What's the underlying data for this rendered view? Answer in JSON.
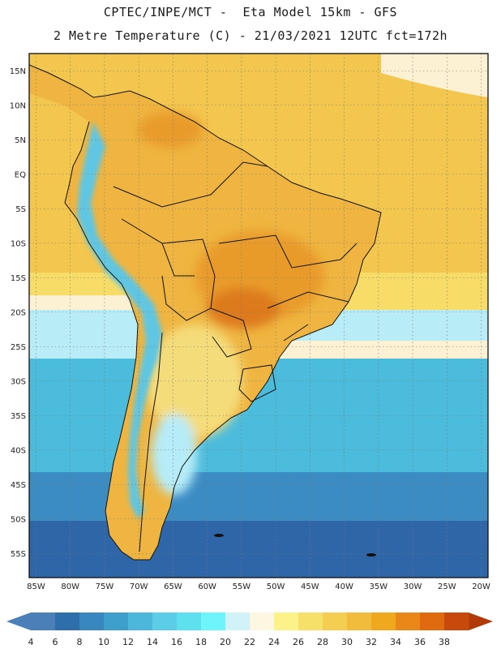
{
  "header": {
    "line1": "CPTEC/INPE/MCT -  Eta Model 15km - GFS",
    "line2": "2 Metre Temperature (C) - 21/03/2021 12UTC fct=172h"
  },
  "map": {
    "lon_range": [
      -86,
      -19
    ],
    "lat_range": [
      17.5,
      -58.5
    ],
    "latitude_labels": [
      {
        "value": 15,
        "label": "15N"
      },
      {
        "value": 10,
        "label": "10N"
      },
      {
        "value": 5,
        "label": "5N"
      },
      {
        "value": 0,
        "label": "EQ"
      },
      {
        "value": -5,
        "label": "5S"
      },
      {
        "value": -10,
        "label": "10S"
      },
      {
        "value": -15,
        "label": "15S"
      },
      {
        "value": -20,
        "label": "20S"
      },
      {
        "value": -25,
        "label": "25S"
      },
      {
        "value": -30,
        "label": "30S"
      },
      {
        "value": -35,
        "label": "35S"
      },
      {
        "value": -40,
        "label": "40S"
      },
      {
        "value": -45,
        "label": "45S"
      },
      {
        "value": -50,
        "label": "50S"
      },
      {
        "value": -55,
        "label": "55S"
      }
    ],
    "longitude_labels": [
      {
        "value": -85,
        "label": "85W"
      },
      {
        "value": -80,
        "label": "80W"
      },
      {
        "value": -75,
        "label": "75W"
      },
      {
        "value": -70,
        "label": "70W"
      },
      {
        "value": -65,
        "label": "65W"
      },
      {
        "value": -60,
        "label": "60W"
      },
      {
        "value": -55,
        "label": "55W"
      },
      {
        "value": -50,
        "label": "50W"
      },
      {
        "value": -45,
        "label": "45W"
      },
      {
        "value": -40,
        "label": "40W"
      },
      {
        "value": -35,
        "label": "35W"
      },
      {
        "value": -30,
        "label": "30W"
      },
      {
        "value": -25,
        "label": "25W"
      },
      {
        "value": -20,
        "label": "20W"
      }
    ]
  },
  "colorbar": {
    "labels": [
      "4",
      "6",
      "8",
      "10",
      "12",
      "14",
      "16",
      "18",
      "20",
      "22",
      "24",
      "26",
      "28",
      "30",
      "32",
      "34",
      "36",
      "38"
    ],
    "colors": [
      "#4a7fb8",
      "#2e6eab",
      "#3887bf",
      "#3f9fcc",
      "#4cb6db",
      "#5ccde6",
      "#5fe0ef",
      "#6ef5fb",
      "#d2f2fa",
      "#fdf7e2",
      "#fbf38a",
      "#f7e06a",
      "#f4ce50",
      "#f1bb3b",
      "#f0a81e",
      "#e98819",
      "#e06a10",
      "#c8490c"
    ],
    "low_arrow_color": "#4a7fb8",
    "high_arrow_color": "#b03a08"
  },
  "palette": {
    "ocean_deep": "#2e66a8",
    "ocean_blue": "#3c8cc4",
    "ocean_cyan": "#4cbcdc",
    "ocean_light": "#b8ecf6",
    "ocean_cream": "#fdf1d4",
    "ocean_yellow": "#f7dc68",
    "ocean_warm": "#f3c64e",
    "land_warm": "#efb540",
    "land_hot": "#e99b2a",
    "land_hottest": "#dd7a1c",
    "andes_cold": "#5fc6e3",
    "andes_cool": "#b6ecf7",
    "patagonia": "#f5dc7a",
    "border": "#111111"
  }
}
